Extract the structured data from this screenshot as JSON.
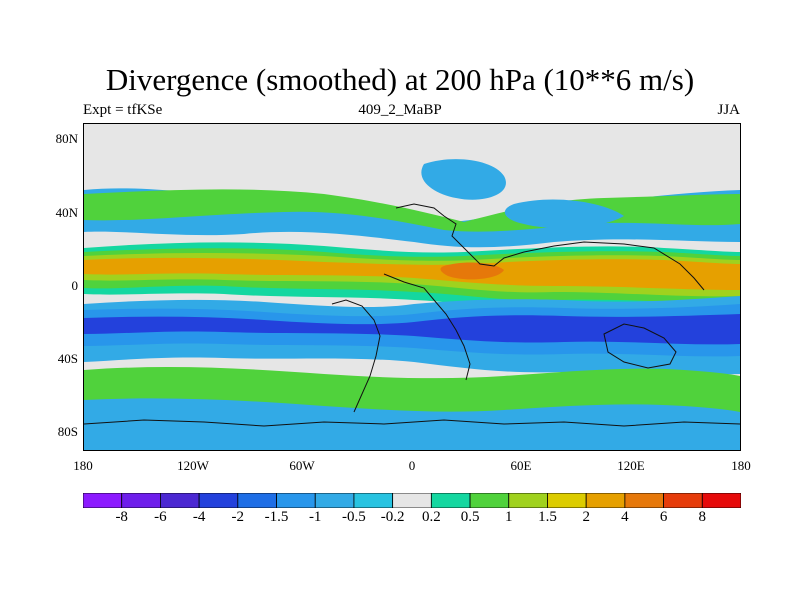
{
  "title": "Divergence (smoothed) at 200 hPa (10**6 m/s)",
  "left_label": "Expt = tfKSe",
  "center_label": "409_2_MaBP",
  "right_label": "JJA",
  "lat_ticks": [
    "80N",
    "40N",
    "0",
    "40S",
    "80S"
  ],
  "lon_ticks": [
    "180",
    "120W",
    "60W",
    "0",
    "60E",
    "120E",
    "180"
  ],
  "colorbar": {
    "colors": [
      "#8c1aff",
      "#6e1eeb",
      "#4b28d2",
      "#2341dc",
      "#1e6ee6",
      "#2896eb",
      "#32aae6",
      "#28c3e1",
      "#e6e6e6",
      "#14d7a0",
      "#50d23c",
      "#a0d21e",
      "#dccc00",
      "#e6a000",
      "#e6780a",
      "#e63c0a",
      "#e60a0a"
    ],
    "labels": [
      "-8",
      "-6",
      "-4",
      "-2",
      "-1.5",
      "-1",
      "-0.5",
      "-0.2",
      "0.2",
      "0.5",
      "1",
      "1.5",
      "2",
      "4",
      "6",
      "8"
    ]
  },
  "palette": {
    "background": "#e6e6e6",
    "cyan": "#32aae6",
    "light_blue": "#2896eb",
    "blue": "#2341dc",
    "teal": "#14d7a0",
    "green": "#50d23c",
    "yellow_green": "#a0d21e",
    "orange": "#e6a000",
    "red_orange": "#e6780a",
    "coast": "#111111"
  }
}
